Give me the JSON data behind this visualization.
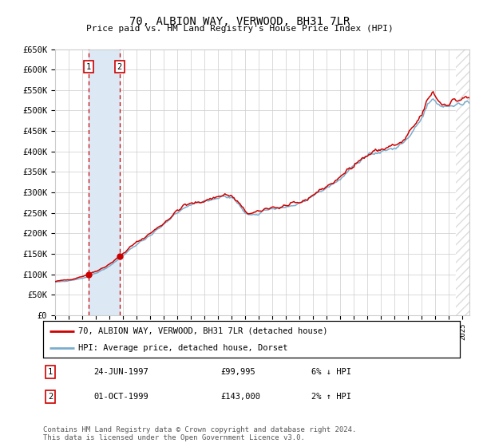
{
  "title": "70, ALBION WAY, VERWOOD, BH31 7LR",
  "subtitle": "Price paid vs. HM Land Registry's House Price Index (HPI)",
  "ylabel_ticks": [
    "£0",
    "£50K",
    "£100K",
    "£150K",
    "£200K",
    "£250K",
    "£300K",
    "£350K",
    "£400K",
    "£450K",
    "£500K",
    "£550K",
    "£600K",
    "£650K"
  ],
  "ylim": [
    0,
    650000
  ],
  "ytick_vals": [
    0,
    50000,
    100000,
    150000,
    200000,
    250000,
    300000,
    350000,
    400000,
    450000,
    500000,
    550000,
    600000,
    650000
  ],
  "xmin": 1995.0,
  "xmax": 2025.5,
  "legend_line1": "70, ALBION WAY, VERWOOD, BH31 7LR (detached house)",
  "legend_line2": "HPI: Average price, detached house, Dorset",
  "sale1_date": 1997.48,
  "sale1_price": 99995,
  "sale2_date": 1999.75,
  "sale2_price": 143000,
  "table_row1": [
    "1",
    "24-JUN-1997",
    "£99,995",
    "6% ↓ HPI"
  ],
  "table_row2": [
    "2",
    "01-OCT-1999",
    "£143,000",
    "2% ↑ HPI"
  ],
  "footer": "Contains HM Land Registry data © Crown copyright and database right 2024.\nThis data is licensed under the Open Government Licence v3.0.",
  "red_line_color": "#cc0000",
  "blue_line_color": "#7aadcc",
  "shade1_color": "#dce9f5",
  "bg_color": "#ffffff",
  "grid_color": "#cccccc",
  "hatch_color": "#bbbbbb",
  "label_box_color": "#cc0000",
  "hatch_start": 2024.5
}
